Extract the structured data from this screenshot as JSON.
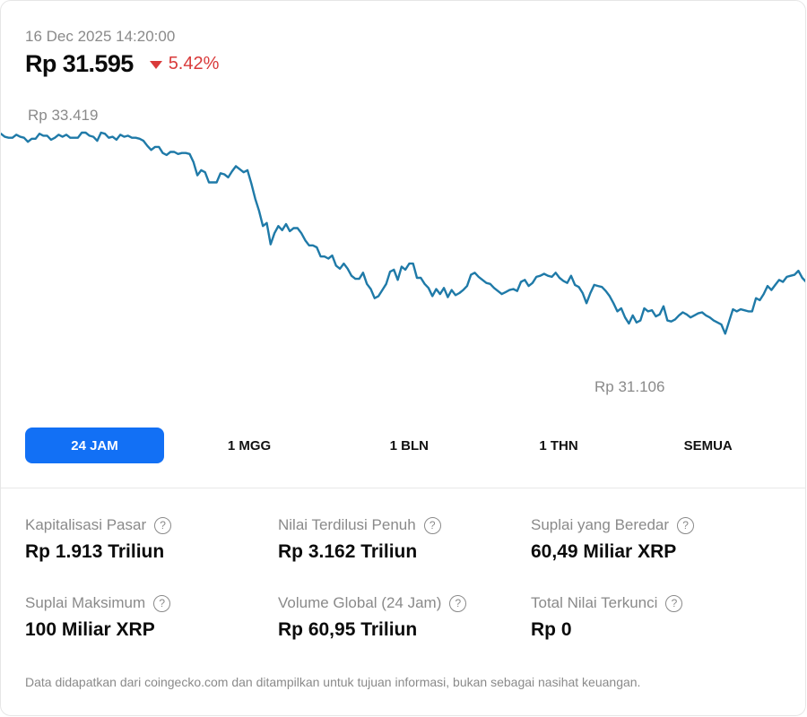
{
  "header": {
    "timestamp": "16 Dec 2025 14:20:00",
    "price": "Rp 31.595",
    "change": "5.42%",
    "change_direction": "down",
    "change_color": "#d93a3a"
  },
  "chart_data": {
    "type": "line",
    "title": "",
    "xlabel": "",
    "ylabel": "",
    "line_color": "#1f7aa8",
    "high_label": "Rp 33.419",
    "low_label": "Rp 31.106",
    "ylim": [
      31.0,
      33.5
    ],
    "grid": false,
    "legend": "none",
    "x_unit": "time index (24h)",
    "values": [
      33.4,
      33.37,
      33.36,
      33.36,
      33.39,
      33.37,
      33.36,
      33.32,
      33.35,
      33.35,
      33.4,
      33.38,
      33.38,
      33.34,
      33.36,
      33.39,
      33.37,
      33.39,
      33.36,
      33.36,
      33.36,
      33.41,
      33.41,
      33.38,
      33.37,
      33.33,
      33.41,
      33.4,
      33.36,
      33.37,
      33.34,
      33.39,
      33.37,
      33.38,
      33.36,
      33.36,
      33.35,
      33.33,
      33.28,
      33.24,
      33.27,
      33.27,
      33.21,
      33.19,
      33.22,
      33.22,
      33.2,
      33.21,
      33.21,
      33.2,
      33.12,
      32.99,
      33.04,
      33.02,
      32.92,
      32.92,
      32.92,
      33.01,
      33.0,
      32.97,
      33.03,
      33.08,
      33.05,
      33.02,
      33.04,
      32.91,
      32.76,
      32.64,
      32.49,
      32.52,
      32.31,
      32.42,
      32.49,
      32.45,
      32.51,
      32.44,
      32.47,
      32.47,
      32.42,
      32.35,
      32.3,
      32.3,
      32.28,
      32.19,
      32.19,
      32.17,
      32.2,
      32.1,
      32.07,
      32.12,
      32.07,
      32.0,
      31.97,
      31.97,
      32.03,
      31.92,
      31.87,
      31.78,
      31.8,
      31.86,
      31.92,
      32.04,
      32.06,
      31.96,
      32.09,
      32.06,
      32.12,
      32.12,
      31.98,
      31.98,
      31.92,
      31.88,
      31.8,
      31.87,
      31.82,
      31.88,
      31.79,
      31.86,
      31.81,
      31.83,
      31.86,
      31.9,
      32.01,
      32.03,
      31.99,
      31.96,
      31.93,
      31.92,
      31.88,
      31.85,
      31.82,
      31.84,
      31.86,
      31.87,
      31.85,
      31.94,
      31.96,
      31.9,
      31.93,
      31.99,
      32.0,
      32.02,
      32.0,
      31.99,
      32.03,
      31.98,
      31.95,
      31.93,
      32.0,
      31.91,
      31.89,
      31.83,
      31.73,
      31.83,
      31.91,
      31.9,
      31.89,
      31.85,
      31.8,
      31.73,
      31.65,
      31.68,
      31.59,
      31.53,
      31.61,
      31.54,
      31.56,
      31.68,
      31.65,
      31.66,
      31.6,
      31.62,
      31.7,
      31.56,
      31.55,
      31.57,
      31.61,
      31.64,
      31.62,
      31.59,
      31.61,
      31.63,
      31.64,
      31.61,
      31.59,
      31.56,
      31.54,
      31.52,
      31.43,
      31.55,
      31.67,
      31.65,
      31.67,
      31.66,
      31.65,
      31.65,
      31.78,
      31.76,
      31.82,
      31.9,
      31.86,
      31.91,
      31.96,
      31.94,
      31.99,
      32.0,
      32.01,
      32.05,
      31.98,
      31.94
    ],
    "min": 31.106,
    "max": 33.419
  },
  "tabs": [
    {
      "label": "24 JAM",
      "active": true
    },
    {
      "label": "1 MGG",
      "active": false
    },
    {
      "label": "1 BLN",
      "active": false
    },
    {
      "label": "1 THN",
      "active": false
    },
    {
      "label": "SEMUA",
      "active": false
    }
  ],
  "accent_color": "#1270f5",
  "stats": [
    {
      "label": "Kapitalisasi Pasar",
      "value": "Rp 1.913 Triliun"
    },
    {
      "label": "Nilai Terdilusi Penuh",
      "value": "Rp 3.162 Triliun"
    },
    {
      "label": "Suplai yang Beredar",
      "value": "60,49 Miliar XRP"
    },
    {
      "label": "Suplai Maksimum",
      "value": "100 Miliar XRP"
    },
    {
      "label": "Volume Global (24 Jam)",
      "value": "Rp 60,95 Triliun"
    },
    {
      "label": "Total Nilai Terkunci",
      "value": "Rp 0"
    }
  ],
  "help_icon_glyph": "?",
  "footer": "Data didapatkan dari coingecko.com dan ditampilkan untuk tujuan informasi, bukan sebagai nasihat keuangan."
}
